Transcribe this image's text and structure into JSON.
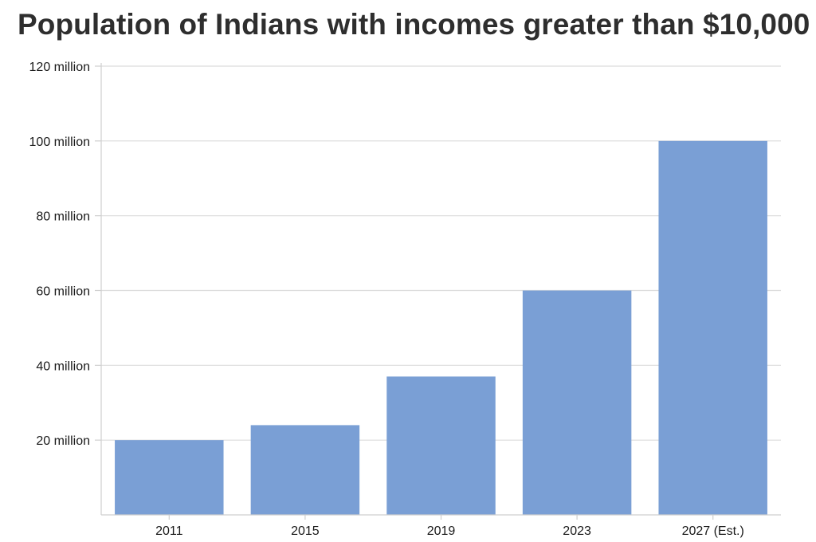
{
  "chart_data": {
    "type": "bar",
    "title": "Population of Indians with incomes greater than $10,000",
    "xlabel": "",
    "ylabel": "",
    "categories": [
      "2011",
      "2015",
      "2019",
      "2023",
      "2027 (Est.)"
    ],
    "values": [
      20,
      24,
      37,
      60,
      100
    ],
    "unit": "million",
    "ylim": [
      0,
      120
    ],
    "yticks": [
      20,
      40,
      60,
      80,
      100,
      120
    ],
    "ytick_labels": [
      "20 million",
      "40 million",
      "60 million",
      "80 million",
      "100 million",
      "120 million"
    ],
    "grid": true,
    "bar_color": "#7a9fd5",
    "grid_color": "#dcdcdc"
  }
}
